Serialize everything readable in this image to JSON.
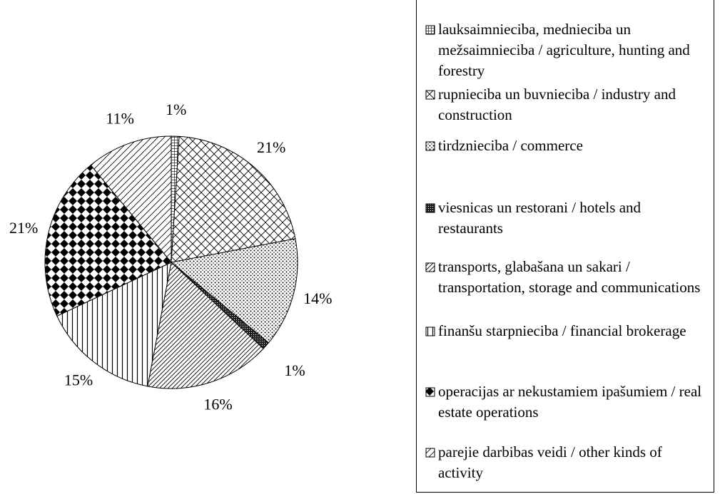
{
  "chart_data": {
    "type": "pie",
    "categories": [
      "lauksaimnieciba, mednieciba un mežsaimnieciba / agriculture, hunting and forestry",
      "rupnieciba un buvnieciba / industry and construction",
      "tirdznieciba / commerce",
      "viesnicas un restorani / hotels and restaurants",
      "transports, glabašana un sakari / transportation, storage and communications",
      "finanšu starpnieciba / financial brokerage",
      "operacijas ar nekustamiem ipašumiem / real estate operations",
      "parejie darbibas veidi / other kinds of activity"
    ],
    "values": [
      1,
      21,
      14,
      1,
      16,
      15,
      21,
      11
    ],
    "value_labels": [
      "1%",
      "21%",
      "14%",
      "1%",
      "16%",
      "15%",
      "21%",
      "11%"
    ],
    "patterns": [
      "grid",
      "cross",
      "dots",
      "dark",
      "diag",
      "vert",
      "diamond",
      "hatch"
    ]
  }
}
